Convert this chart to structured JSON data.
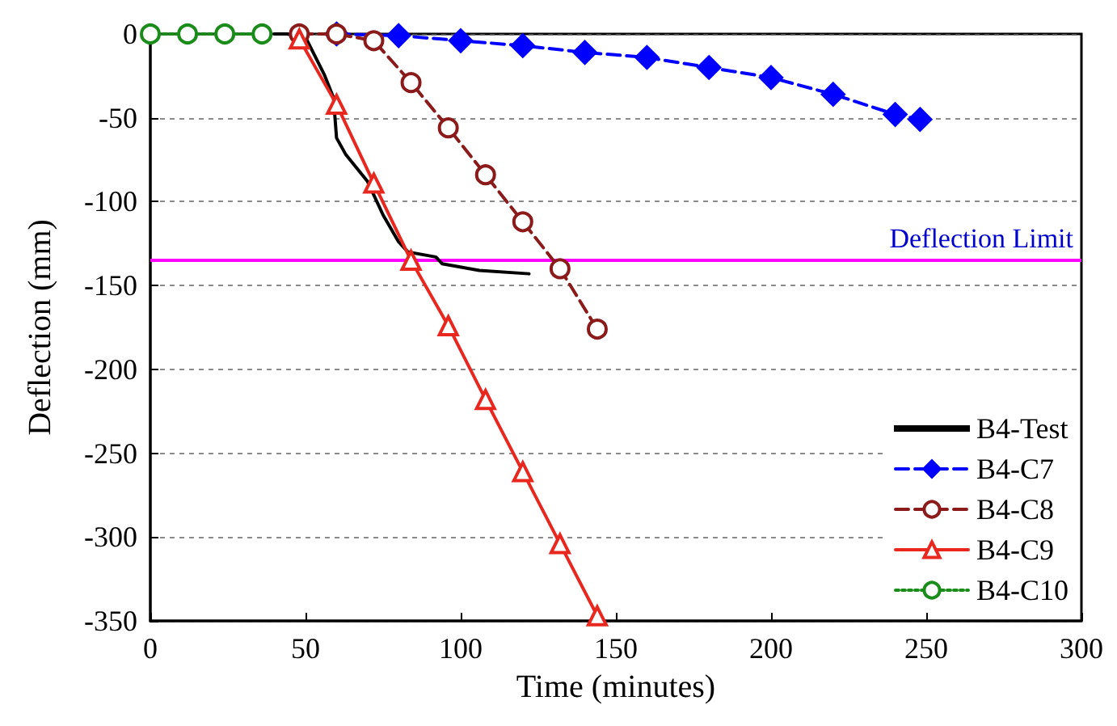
{
  "chart_data": {
    "type": "line",
    "xlabel": "Time (minutes)",
    "ylabel": "Deflection (mm)",
    "xlim": [
      0,
      300
    ],
    "xticks": [
      0,
      50,
      100,
      150,
      200,
      250,
      300
    ],
    "ylim": [
      -350,
      0
    ],
    "yticks": [
      -350,
      -300,
      -250,
      -200,
      -150,
      -100,
      -50,
      0
    ],
    "grid": "y",
    "legend": "bottom right",
    "series": [
      {
        "name": "B4-Test",
        "color": "#000000",
        "marker": "none",
        "line_style": "solid",
        "x": [
          40,
          44,
          50,
          56,
          59,
          60,
          63,
          70,
          75,
          80,
          83,
          92,
          94,
          106,
          122
        ],
        "values": [
          0,
          0,
          -2,
          -24,
          -38,
          -62,
          -72,
          -88,
          -108,
          -124,
          -130,
          -133,
          -137,
          -141,
          -143
        ]
      },
      {
        "name": "B4-C7",
        "color": "#0000ff",
        "marker": "diamond",
        "line_style": "dashed",
        "x": [
          60,
          80,
          100,
          120,
          140,
          160,
          180,
          200,
          220,
          240,
          248
        ],
        "values": [
          0,
          -1,
          -4,
          -7,
          -11,
          -14,
          -20,
          -26,
          -36,
          -48,
          -51
        ]
      },
      {
        "name": "B4-C8",
        "color": "#8b1a1a",
        "marker": "circle",
        "line_style": "dashed",
        "x": [
          48,
          60,
          72,
          84,
          96,
          108,
          120,
          132,
          144
        ],
        "values": [
          0,
          0,
          -4,
          -29,
          -56,
          -84,
          -112,
          -140,
          -176
        ]
      },
      {
        "name": "B4-C9",
        "color": "#e8271f",
        "marker": "triangle",
        "line_style": "solid",
        "x": [
          48,
          60,
          72,
          84,
          96,
          108,
          120,
          132,
          144
        ],
        "values": [
          -3,
          -42,
          -89,
          -135,
          -174,
          -218,
          -261,
          -304,
          -347
        ]
      },
      {
        "name": "B4-C10",
        "color": "#1a8c1a",
        "marker": "circle",
        "line_style": "dotted",
        "x": [
          0,
          12,
          24,
          36
        ],
        "values": [
          0,
          0,
          0,
          0
        ]
      }
    ],
    "ref_lines": [
      {
        "axis": "y",
        "value": -135,
        "label": "Deflection Limit",
        "color": "#ff00ff"
      }
    ]
  }
}
